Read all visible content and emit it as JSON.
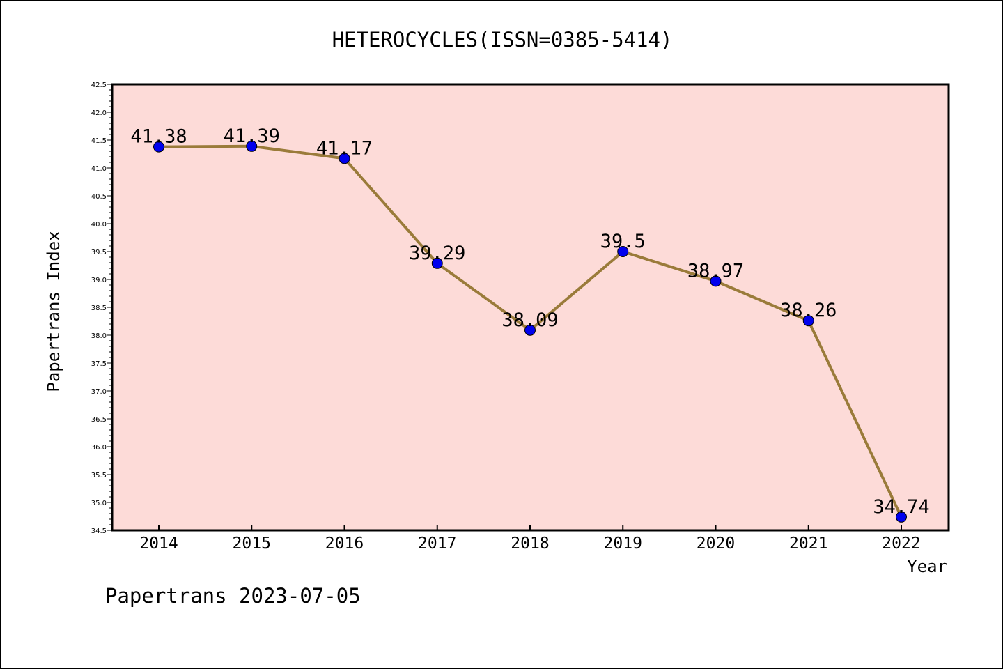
{
  "chart_data": {
    "type": "line",
    "title": "HETEROCYCLES(ISSN=0385-5414)",
    "xlabel": "Year",
    "ylabel": "Papertrans Index",
    "categories": [
      "2014",
      "2015",
      "2016",
      "2017",
      "2018",
      "2019",
      "2020",
      "2021",
      "2022"
    ],
    "series": [
      {
        "values": [
          41.38,
          41.39,
          41.17,
          39.29,
          38.09,
          39.5,
          38.97,
          38.26,
          34.74
        ],
        "data_labels": [
          "41.38",
          "41.39",
          "41.17",
          "39.29",
          "38.09",
          "39.5",
          "38.97",
          "38.26",
          "34.74"
        ]
      }
    ],
    "ylim": [
      34.5,
      42.5
    ],
    "y_ticks": [
      "34.5",
      "35.0",
      "35.5",
      "36.0",
      "36.5",
      "37.0",
      "37.5",
      "38.0",
      "38.5",
      "39.0",
      "39.5",
      "40.0",
      "40.5",
      "41.0",
      "41.5",
      "42.0",
      "42.5"
    ],
    "grid": false,
    "legend": "none",
    "footer": "Papertrans 2023-07-05",
    "colors": {
      "plot_background": "#fddbd8",
      "line": "#9a7b3a",
      "marker": "#0000ee",
      "axis": "#000000"
    }
  }
}
